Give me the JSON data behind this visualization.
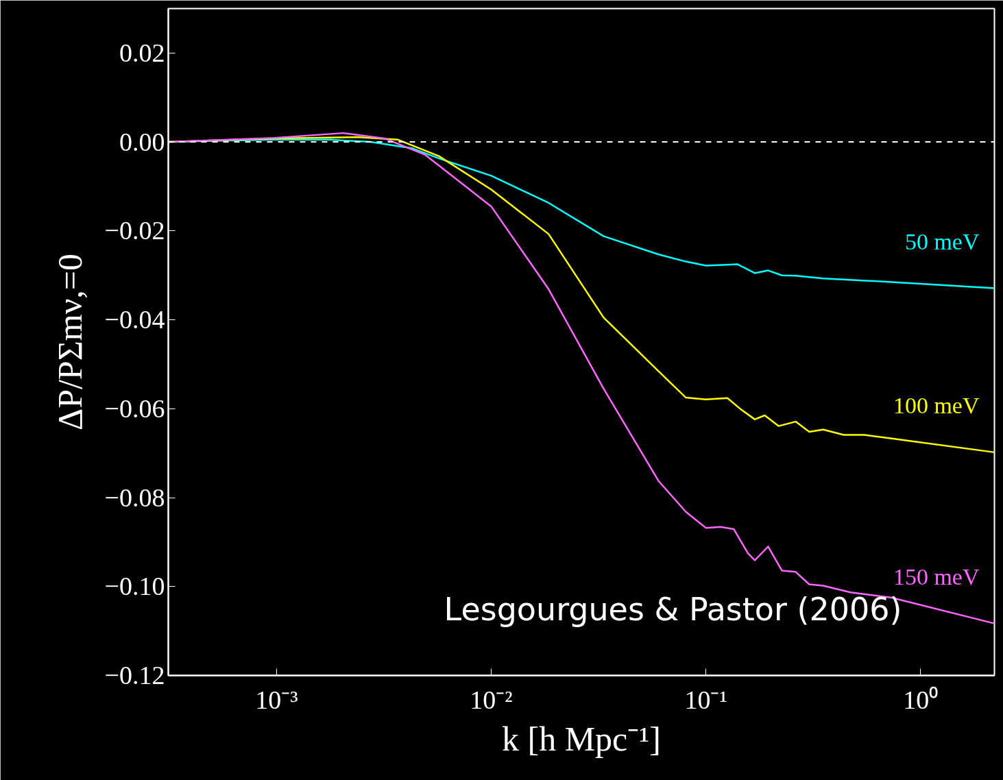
{
  "chart_data": {
    "type": "line",
    "xlabel": "k [h Mpc⁻¹]",
    "ylabel": "ΔP/PΣmν,=0",
    "log": "x",
    "xlim": [
      0.000313,
      2.21
    ],
    "ylim": [
      -0.12,
      0.03
    ],
    "xticks": [
      {
        "value": 0.001,
        "label": "10⁻³"
      },
      {
        "value": 0.01,
        "label": "10⁻²"
      },
      {
        "value": 0.1,
        "label": "10⁻¹"
      },
      {
        "value": 1,
        "label": "10⁰"
      }
    ],
    "yticks": [
      {
        "value": -0.12,
        "label": "−0.12"
      },
      {
        "value": -0.1,
        "label": "−0.10"
      },
      {
        "value": -0.08,
        "label": "−0.08"
      },
      {
        "value": -0.06,
        "label": "−0.06"
      },
      {
        "value": -0.04,
        "label": "−0.04"
      },
      {
        "value": -0.02,
        "label": "−0.02"
      },
      {
        "value": 0,
        "label": "0.00"
      },
      {
        "value": 0.02,
        "label": "0.02"
      }
    ],
    "grid": false,
    "legend": false,
    "marker": "none",
    "line_style": "solid",
    "ref_lines": [
      {
        "axis": "y",
        "value": 0,
        "color": "#ffffff",
        "line_style": "dashed"
      }
    ],
    "annotations": [
      "Lesgourgues & Pastor (2006)"
    ],
    "series": [
      {
        "name": "50 meV",
        "color": "#00ffff",
        "x": [
          0.000313,
          0.000543,
          0.000977,
          0.00176,
          0.00274,
          0.00426,
          0.00571,
          0.01,
          0.0185,
          0.0334,
          0.0603,
          0.0807,
          0.1,
          0.126,
          0.14,
          0.169,
          0.195,
          0.226,
          0.262,
          0.303,
          0.352,
          0.734,
          2.21
        ],
        "values": [
          0,
          0.0003,
          0.0005,
          0.0005,
          0,
          -0.0014,
          -0.0037,
          -0.0076,
          -0.0137,
          -0.0212,
          -0.0253,
          -0.0269,
          -0.0278,
          -0.0276,
          -0.0275,
          -0.0295,
          -0.0289,
          -0.03,
          -0.0301,
          -0.0304,
          -0.0307,
          -0.0315,
          -0.0329
        ]
      },
      {
        "name": "100 meV",
        "color": "#ffff00",
        "x": [
          0.000313,
          0.000977,
          0.00237,
          0.00368,
          0.00571,
          0.01,
          0.0185,
          0.0334,
          0.0603,
          0.0807,
          0.1,
          0.126,
          0.146,
          0.169,
          0.188,
          0.218,
          0.262,
          0.303,
          0.352,
          0.439,
          0.547,
          0.734,
          2.21
        ],
        "values": [
          0,
          0.0008,
          0.0011,
          0.0005,
          -0.0032,
          -0.0107,
          -0.0207,
          -0.0395,
          -0.0516,
          -0.0575,
          -0.0579,
          -0.0576,
          -0.0602,
          -0.0624,
          -0.0615,
          -0.0639,
          -0.0629,
          -0.0652,
          -0.0647,
          -0.0659,
          -0.0659,
          -0.0667,
          -0.0698
        ]
      },
      {
        "name": "150 meV",
        "color": "#ff66ff",
        "x": [
          0.000313,
          0.000977,
          0.00204,
          0.00318,
          0.00493,
          0.01,
          0.0185,
          0.0334,
          0.0603,
          0.0807,
          0.1,
          0.117,
          0.135,
          0.157,
          0.169,
          0.195,
          0.226,
          0.262,
          0.303,
          0.352,
          0.472,
          0.734,
          2.21
        ],
        "values": [
          0,
          0.0009,
          0.002,
          0.0008,
          -0.0029,
          -0.0145,
          -0.0331,
          -0.0555,
          -0.0763,
          -0.0832,
          -0.0868,
          -0.0866,
          -0.0871,
          -0.0925,
          -0.0941,
          -0.091,
          -0.0964,
          -0.0967,
          -0.0995,
          -0.0998,
          -0.1013,
          -0.1025,
          -0.1083
        ]
      }
    ]
  }
}
